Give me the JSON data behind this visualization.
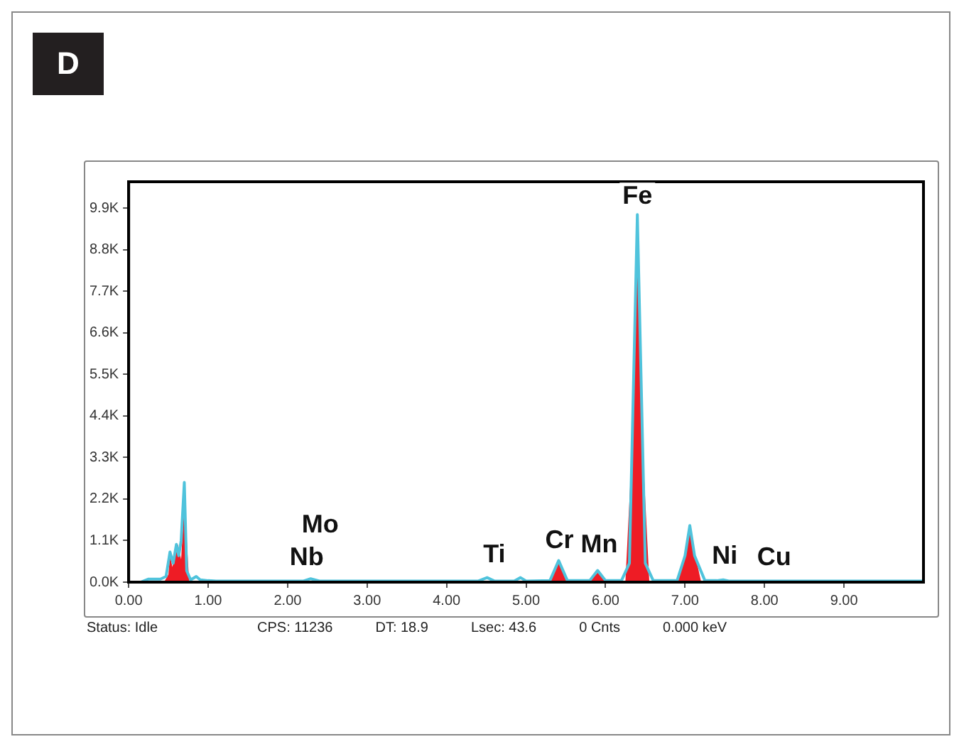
{
  "chart_data": {
    "type": "line",
    "title": "D",
    "xlim": [
      0,
      10
    ],
    "ylim": [
      0,
      10600
    ],
    "xticks": [
      {
        "value": 0,
        "label": "0.00"
      },
      {
        "value": 1,
        "label": "1.00"
      },
      {
        "value": 2,
        "label": "2.00"
      },
      {
        "value": 3,
        "label": "3.00"
      },
      {
        "value": 4,
        "label": "4.00"
      },
      {
        "value": 5,
        "label": "5.00"
      },
      {
        "value": 6,
        "label": "6.00"
      },
      {
        "value": 7,
        "label": "7.00"
      },
      {
        "value": 8,
        "label": "8.00"
      },
      {
        "value": 9,
        "label": "9.00"
      }
    ],
    "yticks": [
      {
        "value": 0,
        "label": "0.0K"
      },
      {
        "value": 1100,
        "label": "1.1K"
      },
      {
        "value": 2200,
        "label": "2.2K"
      },
      {
        "value": 3300,
        "label": "3.3K"
      },
      {
        "value": 4400,
        "label": "4.4K"
      },
      {
        "value": 5500,
        "label": "5.5K"
      },
      {
        "value": 6600,
        "label": "6.6K"
      },
      {
        "value": 7700,
        "label": "7.7K"
      },
      {
        "value": 8800,
        "label": "8.8K"
      },
      {
        "value": 9900,
        "label": "9.9K"
      }
    ],
    "grid": false,
    "legend": false,
    "marker": "none",
    "series": [
      {
        "type": "area",
        "color": "#ee1c25",
        "x": [
          0.2,
          0.45,
          0.5,
          0.52,
          0.55,
          0.6,
          0.62,
          0.66,
          0.7,
          0.72,
          0.76,
          1.0,
          5.3,
          5.41,
          5.52,
          5.8,
          5.9,
          6.0,
          6.25,
          6.32,
          6.4,
          6.48,
          6.55,
          6.9,
          7.0,
          7.06,
          7.12,
          7.2,
          10
        ],
        "values": [
          20,
          20,
          200,
          700,
          400,
          900,
          1000,
          600,
          2100,
          1500,
          40,
          20,
          30,
          530,
          30,
          30,
          250,
          30,
          30,
          3000,
          9400,
          3000,
          30,
          30,
          800,
          1400,
          800,
          30,
          20
        ]
      },
      {
        "color": "#4fc3dc",
        "x": [
          0.15,
          0.25,
          0.4,
          0.47,
          0.52,
          0.56,
          0.6,
          0.63,
          0.66,
          0.7,
          0.73,
          0.78,
          0.85,
          0.9,
          1.0,
          1.1,
          2.2,
          2.29,
          2.4,
          4.4,
          4.51,
          4.6,
          4.85,
          4.93,
          5.0,
          5.3,
          5.41,
          5.52,
          5.8,
          5.9,
          6.0,
          6.2,
          6.3,
          6.4,
          6.5,
          6.6,
          6.9,
          7.0,
          7.06,
          7.12,
          7.25,
          7.4,
          7.48,
          7.55,
          8.0,
          10
        ],
        "values": [
          0,
          80,
          80,
          150,
          800,
          500,
          1000,
          700,
          1100,
          2640,
          300,
          60,
          150,
          60,
          40,
          30,
          30,
          90,
          30,
          30,
          120,
          30,
          30,
          120,
          30,
          40,
          570,
          40,
          40,
          310,
          40,
          40,
          500,
          9730,
          500,
          40,
          40,
          700,
          1500,
          700,
          40,
          40,
          60,
          30,
          30,
          30
        ]
      }
    ],
    "annotations": [
      {
        "text": "Fe",
        "x": 6.4,
        "y": 10200
      },
      {
        "text": "Mo",
        "x": 2.41,
        "y": 1500
      },
      {
        "text": "Nb",
        "x": 2.24,
        "y": 640
      },
      {
        "text": "Ti",
        "x": 4.6,
        "y": 720
      },
      {
        "text": "Cr",
        "x": 5.42,
        "y": 1090
      },
      {
        "text": "Mn",
        "x": 5.92,
        "y": 980
      },
      {
        "text": "Ni",
        "x": 7.5,
        "y": 680
      },
      {
        "text": "Cu",
        "x": 8.12,
        "y": 640
      },
      "Status: Idle",
      "CPS: 11236",
      "DT: 18.9",
      "Lsec: 43.6",
      "0 Cnts",
      "0.000 keV"
    ]
  }
}
